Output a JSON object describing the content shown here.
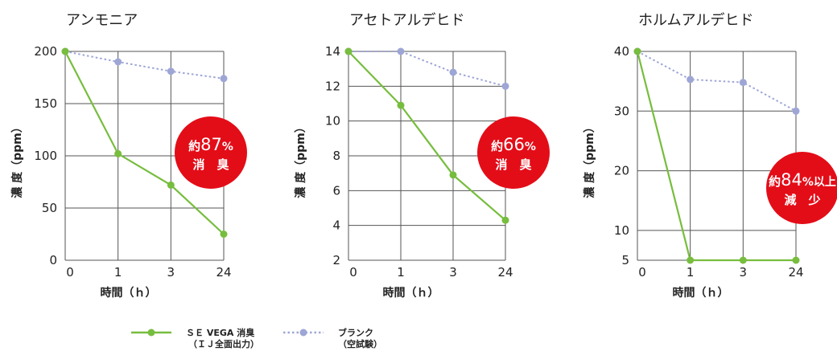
{
  "legend": {
    "series_a_line1": "ＳＥ VEGA 消臭",
    "series_a_line2": "（ＩＪ全面出力）",
    "series_b_line1": "ブランク",
    "series_b_line2": "（空試験）"
  },
  "colors": {
    "green": "#77bd3e",
    "blue": "#9ea6d6",
    "badge": "#e30d18",
    "grid": "#555555"
  },
  "chart_data": [
    {
      "type": "line",
      "title": "アンモニア",
      "xlabel": "時間（ｈ）",
      "ylabel": "濃 度（ppm）",
      "categories": [
        "0",
        "1",
        "3",
        "24"
      ],
      "yticks": [
        0,
        50,
        100,
        150,
        200
      ],
      "ylim": [
        0,
        200
      ],
      "series": [
        {
          "name": "ＳＥ VEGA 消臭（ＩＪ全面出力）",
          "color": "#77bd3e",
          "style": "solid",
          "values": [
            200,
            102,
            72,
            25
          ]
        },
        {
          "name": "ブランク（空試験）",
          "color": "#9ea6d6",
          "style": "dotted",
          "values": [
            200,
            190,
            181,
            174
          ]
        }
      ],
      "annotation": {
        "line1_prefix": "約",
        "line1_num": "87",
        "line1_suffix": "%",
        "line2": "消　臭"
      }
    },
    {
      "type": "line",
      "title": "アセトアルデヒド",
      "xlabel": "時間（ｈ）",
      "ylabel": "濃 度（ppm）",
      "categories": [
        "0",
        "1",
        "3",
        "24"
      ],
      "yticks": [
        2,
        4,
        6,
        8,
        10,
        12,
        14
      ],
      "ylim": [
        2,
        14
      ],
      "series": [
        {
          "name": "ＳＥ VEGA 消臭（ＩＪ全面出力）",
          "color": "#77bd3e",
          "style": "solid",
          "values": [
            14,
            10.9,
            6.9,
            4.3
          ]
        },
        {
          "name": "ブランク（空試験）",
          "color": "#9ea6d6",
          "style": "dotted",
          "values": [
            14,
            14,
            12.8,
            12
          ]
        }
      ],
      "annotation": {
        "line1_prefix": "約",
        "line1_num": "66",
        "line1_suffix": "%",
        "line2": "消　臭"
      }
    },
    {
      "type": "line",
      "title": "ホルムアルデヒド",
      "xlabel": "時間（ｈ）",
      "ylabel": "濃 度（ppm）",
      "categories": [
        "0",
        "1",
        "3",
        "24"
      ],
      "yticks": [
        5,
        10,
        20,
        30,
        40
      ],
      "ylim": [
        5,
        40
      ],
      "series": [
        {
          "name": "ＳＥ VEGA 消臭（ＩＪ全面出力）",
          "color": "#77bd3e",
          "style": "solid",
          "values": [
            40,
            5,
            5,
            5
          ]
        },
        {
          "name": "ブランク（空試験）",
          "color": "#9ea6d6",
          "style": "dotted",
          "values": [
            40,
            35.3,
            34.8,
            30
          ]
        }
      ],
      "annotation": {
        "line1_prefix": "約",
        "line1_num": "84",
        "line1_suffix": "%以上",
        "line2": "減　少"
      }
    }
  ]
}
